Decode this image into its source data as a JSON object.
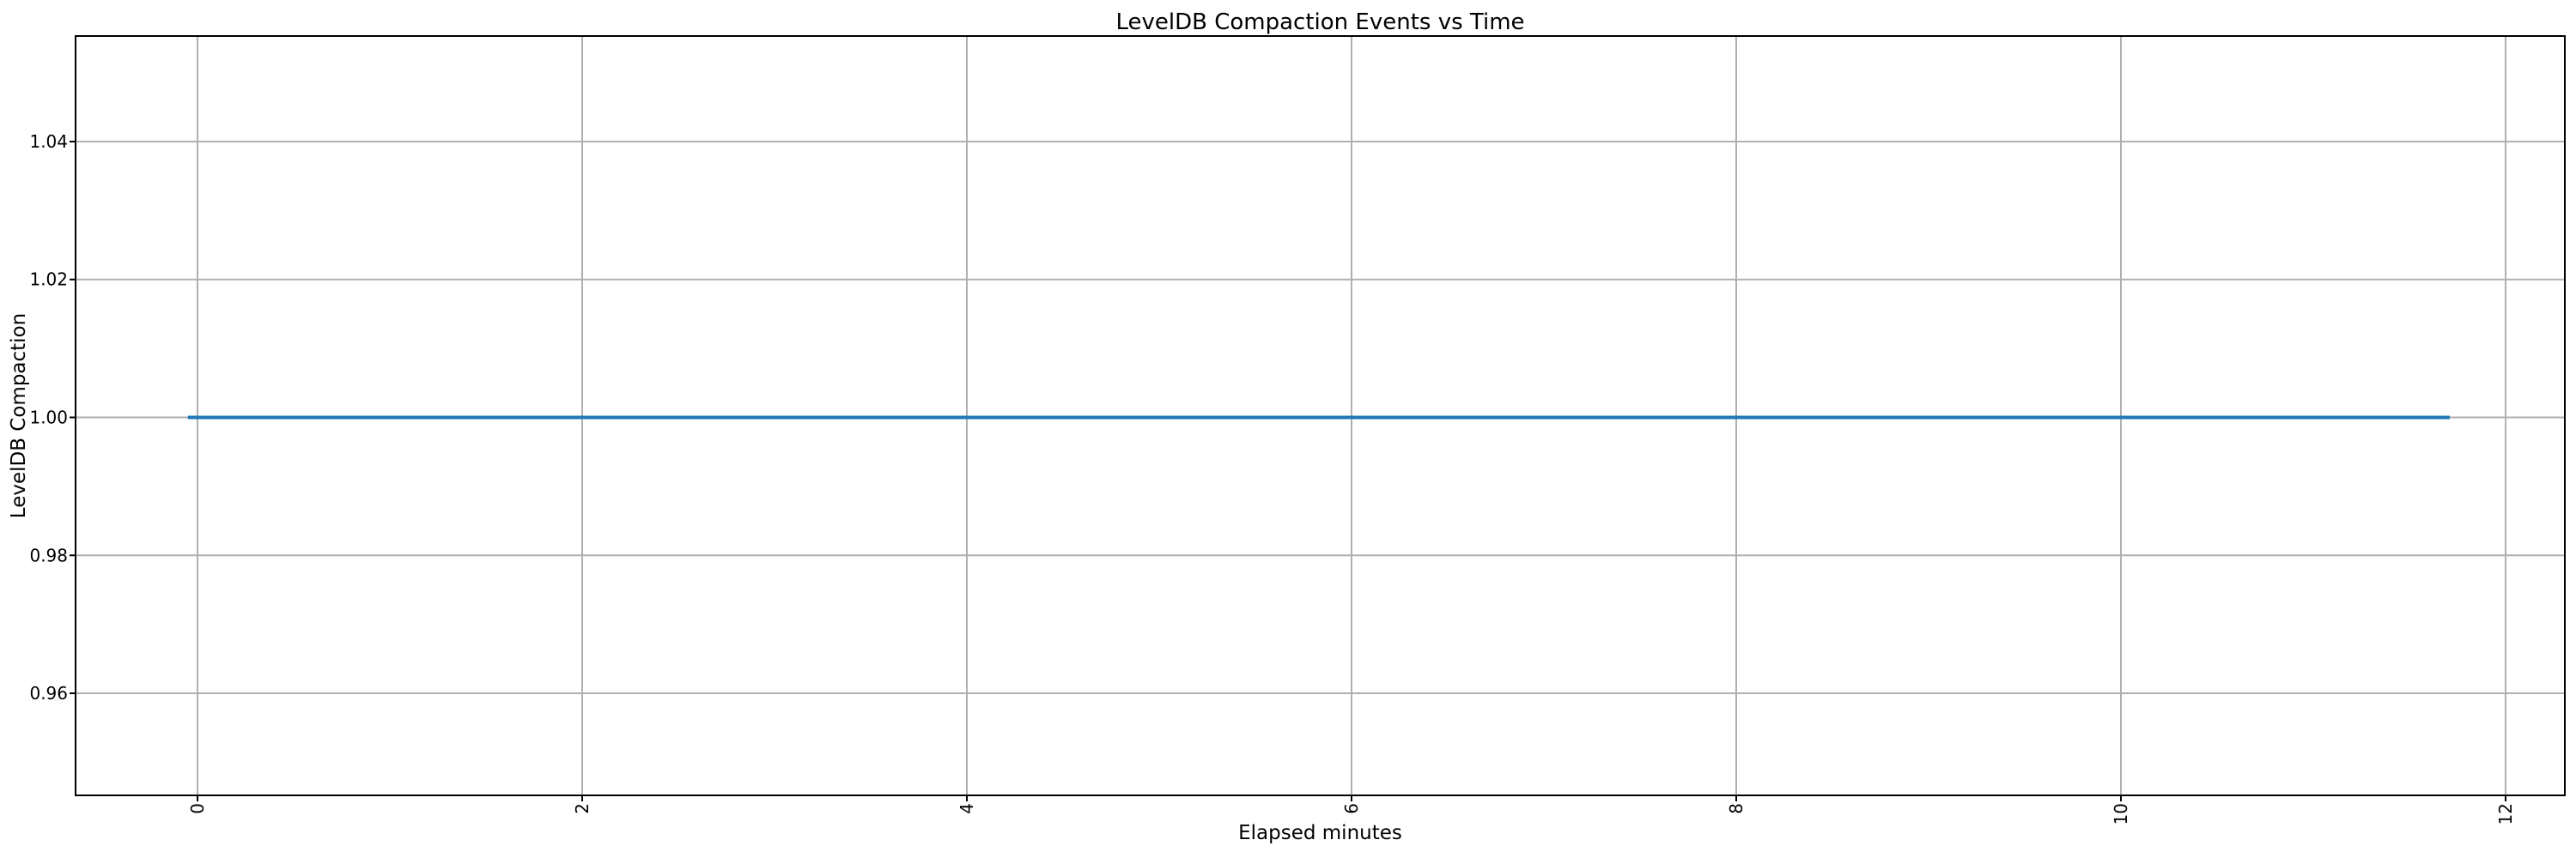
{
  "chart_data": {
    "type": "line",
    "title": "LevelDB Compaction Events vs Time",
    "xlabel": "Elapsed minutes",
    "ylabel": "LevelDB Compaction",
    "xlim": [
      -0.634,
      12.308
    ],
    "ylim": [
      0.9452,
      1.0553
    ],
    "xticks": {
      "values": [
        0,
        2,
        4,
        6,
        8,
        10,
        12
      ],
      "labels": [
        "0",
        "2",
        "4",
        "6",
        "8",
        "10",
        "12"
      ],
      "rotation": 90
    },
    "yticks": {
      "values": [
        0.96,
        0.98,
        1.0,
        1.02,
        1.04
      ],
      "labels": [
        "0.96",
        "0.98",
        "1.00",
        "1.02",
        "1.04"
      ]
    },
    "grid": true,
    "grid_color": "#b0b0b0",
    "spine_color": "#000000",
    "text_color": "#000000",
    "background_color": "#ffffff",
    "legend": null,
    "series": [
      {
        "name": "LevelDB Compaction",
        "color": "#1f77b4",
        "x": [
          -0.05,
          11.71
        ],
        "y": [
          1.0,
          1.0
        ],
        "note": "constant value 1.0 from elapsed minute 0 to ~11.7"
      }
    ]
  }
}
